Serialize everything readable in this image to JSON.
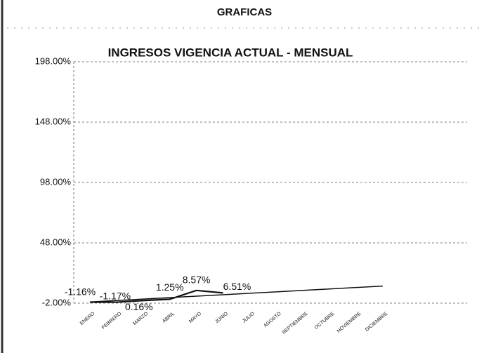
{
  "page_title": "GRAFICAS",
  "chart_data": {
    "type": "line",
    "title": "INGRESOS VIGENCIA ACTUAL - MENSUAL",
    "categories": [
      "ENERO",
      "FEBRERO",
      "MARZO",
      "ABRIL",
      "MAYO",
      "JUNIO",
      "JULIO",
      "AGOSTO",
      "SEPTIEMBRE",
      "OCTUBRE",
      "NOVIEMBRE",
      "DICIEMBRE"
    ],
    "series": [
      {
        "color": "#111111",
        "values": [
          -1.16,
          -1.17,
          0.16,
          1.25,
          8.57,
          6.51,
          null,
          null,
          null,
          null,
          null,
          null
        ],
        "value_labels": [
          "-1.16%",
          "-1.17%",
          "0.16%",
          "1.25%",
          "8.57%",
          "6.51%",
          null,
          null,
          null,
          null,
          null,
          null
        ]
      },
      {
        "color": "#111111",
        "values": [
          -1.0,
          0.2,
          1.4,
          2.6,
          3.8,
          5.0,
          6.2,
          7.4,
          8.6,
          9.8,
          11.0,
          12.2
        ]
      }
    ],
    "ylim": [
      -2,
      198
    ],
    "yticks": [
      {
        "value": -2,
        "label": "-2.00%"
      },
      {
        "value": 48,
        "label": "48.00%"
      },
      {
        "value": 98,
        "label": "98.00%"
      },
      {
        "value": 148,
        "label": "148.00%"
      },
      {
        "value": 198,
        "label": "198.00%"
      }
    ],
    "grid": true
  }
}
